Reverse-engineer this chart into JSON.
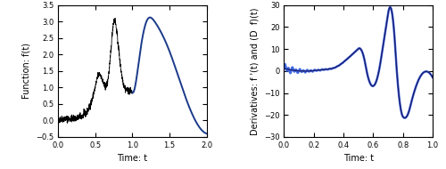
{
  "left_xlim": [
    0,
    2
  ],
  "left_ylim": [
    -0.5,
    3.5
  ],
  "left_xlabel": "Time: t",
  "left_ylabel": "Function: f(t)",
  "left_xticks": [
    0,
    0.5,
    1.0,
    1.5,
    2.0
  ],
  "left_yticks": [
    -0.5,
    0,
    0.5,
    1.0,
    1.5,
    2.0,
    2.5,
    3.0,
    3.5
  ],
  "right_xlim": [
    0,
    1
  ],
  "right_ylim": [
    -30,
    30
  ],
  "right_xlabel": "Time: t",
  "right_ylabel": "Derivatives: f '(t) and (D  f)(t)",
  "right_xticks": [
    0,
    0.2,
    0.4,
    0.6,
    0.8,
    1.0
  ],
  "right_yticks": [
    -30,
    -20,
    -10,
    0,
    10,
    20,
    30
  ],
  "noisy_color": "#000000",
  "spline_color": "#1a3a8a",
  "exact_deriv_color": "#1a1a6a",
  "approx_deriv_color": "#4169e1",
  "figsize": [
    5.0,
    1.9
  ],
  "dpi": 100
}
